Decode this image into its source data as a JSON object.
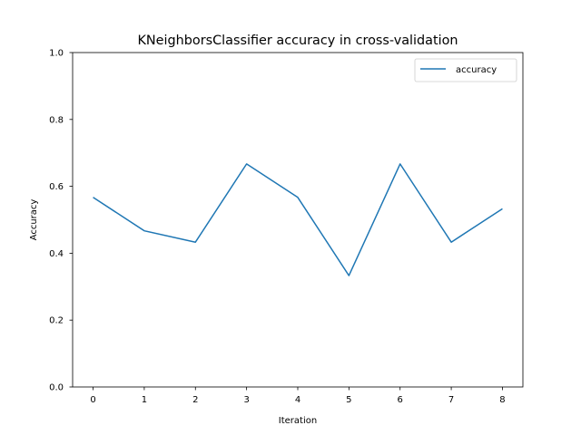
{
  "chart_data": {
    "type": "line",
    "title": "KNeighborsClassifier accuracy in cross-validation",
    "xlabel": "Iteration",
    "ylabel": "Accuracy",
    "x": [
      0,
      1,
      2,
      3,
      4,
      5,
      6,
      7,
      8
    ],
    "xticks": [
      "0",
      "1",
      "2",
      "3",
      "4",
      "5",
      "6",
      "7",
      "8"
    ],
    "yticks": [
      "0.0",
      "0.2",
      "0.4",
      "0.6",
      "0.8",
      "1.0"
    ],
    "ylim": [
      0,
      1
    ],
    "grid": false,
    "legend_position": "top-right",
    "series": [
      {
        "name": "accuracy",
        "color": "#1f77b4",
        "values": [
          0.567,
          0.467,
          0.433,
          0.667,
          0.567,
          0.333,
          0.667,
          0.433,
          0.533
        ]
      }
    ]
  }
}
